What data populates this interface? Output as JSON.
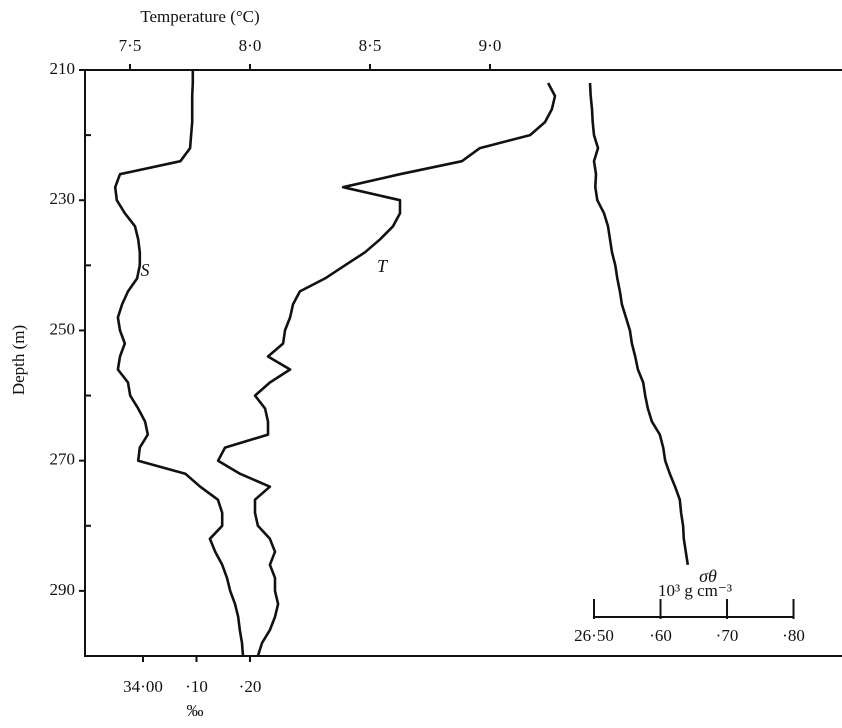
{
  "chart_data": {
    "type": "line",
    "y_label": "Depth (m)",
    "ylim": [
      210,
      300
    ],
    "y_inverted": true,
    "yticks": [
      210,
      230,
      250,
      270,
      290
    ],
    "y_minor_ticks": [
      220,
      240,
      260,
      280
    ],
    "y": [
      210,
      212,
      214,
      216,
      218,
      220,
      222,
      224,
      226,
      228,
      230,
      232,
      234,
      236,
      238,
      240,
      242,
      244,
      246,
      248,
      250,
      252,
      254,
      256,
      258,
      260,
      262,
      264,
      266,
      268,
      270,
      272,
      274,
      276,
      278,
      280,
      282,
      284,
      286,
      288,
      290,
      292,
      294,
      296,
      298,
      300
    ],
    "x_axes": [
      {
        "label": "Temperature (°C)",
        "position": "top",
        "lim": [
          7.3125,
          10.4667
        ],
        "ticks": [
          {
            "value": 7.5,
            "label": "7·5"
          },
          {
            "value": 8.0,
            "label": "8·0"
          },
          {
            "value": 8.5,
            "label": "8·5"
          },
          {
            "value": 9.0,
            "label": "9·0"
          }
        ]
      },
      {
        "label": "‰",
        "position": "bottom",
        "lim": [
          33.8916,
          35.3065
        ],
        "ticks": [
          {
            "value": 34.0,
            "label": "34·00"
          },
          {
            "value": 34.1,
            "label": "·10"
          },
          {
            "value": 34.2,
            "label": "·20"
          }
        ]
      },
      {
        "label": "10³ g cm⁻³",
        "position": "inset",
        "lim": [
          25.7346,
          26.8729
        ],
        "ticks": [
          {
            "value": 26.5,
            "label": "26·50"
          },
          {
            "value": 26.6,
            "label": "·60"
          },
          {
            "value": 26.7,
            "label": "·70"
          },
          {
            "value": 26.8,
            "label": "·80"
          }
        ]
      }
    ],
    "series": [
      {
        "name": "S",
        "axis": 1,
        "color": "#111111",
        "values": [
          34.093,
          34.093,
          34.092,
          34.092,
          34.092,
          34.09,
          34.088,
          34.07,
          33.957,
          33.948,
          33.951,
          33.966,
          33.985,
          33.991,
          33.994,
          33.994,
          33.989,
          33.972,
          33.961,
          33.953,
          33.957,
          33.966,
          33.957,
          33.953,
          33.972,
          33.976,
          33.991,
          34.004,
          34.009,
          33.994,
          33.991,
          34.079,
          34.107,
          34.14,
          34.148,
          34.148,
          34.125,
          34.135,
          34.148,
          34.157,
          34.163,
          34.172,
          34.178,
          34.181,
          34.185,
          34.187
        ]
      },
      {
        "name": "T",
        "axis": 0,
        "color": "#111111",
        "values": [
          null,
          9.242,
          9.271,
          9.258,
          9.229,
          9.167,
          8.958,
          8.883,
          8.625,
          8.388,
          8.625,
          8.625,
          8.596,
          8.542,
          8.479,
          8.396,
          8.313,
          8.208,
          8.179,
          8.167,
          8.146,
          8.138,
          8.075,
          8.167,
          8.083,
          8.021,
          8.063,
          8.075,
          8.075,
          7.896,
          7.867,
          7.958,
          8.083,
          8.021,
          8.021,
          8.033,
          8.083,
          8.104,
          8.083,
          8.104,
          8.104,
          8.117,
          8.104,
          8.083,
          8.05,
          8.033
        ]
      },
      {
        "name": "σθ",
        "axis": 2,
        "color": "#111111",
        "values": [
          null,
          26.494,
          26.495,
          26.497,
          26.498,
          26.5,
          26.506,
          26.5,
          26.503,
          26.502,
          26.505,
          26.515,
          26.521,
          26.524,
          26.527,
          26.532,
          26.535,
          26.539,
          26.542,
          26.548,
          26.554,
          26.557,
          26.562,
          26.566,
          26.574,
          26.577,
          26.581,
          26.587,
          26.599,
          26.604,
          26.607,
          26.614,
          26.622,
          26.629,
          26.631,
          26.634,
          26.635,
          26.638,
          26.641,
          null,
          null,
          null,
          null,
          null,
          null,
          null
        ]
      }
    ]
  }
}
